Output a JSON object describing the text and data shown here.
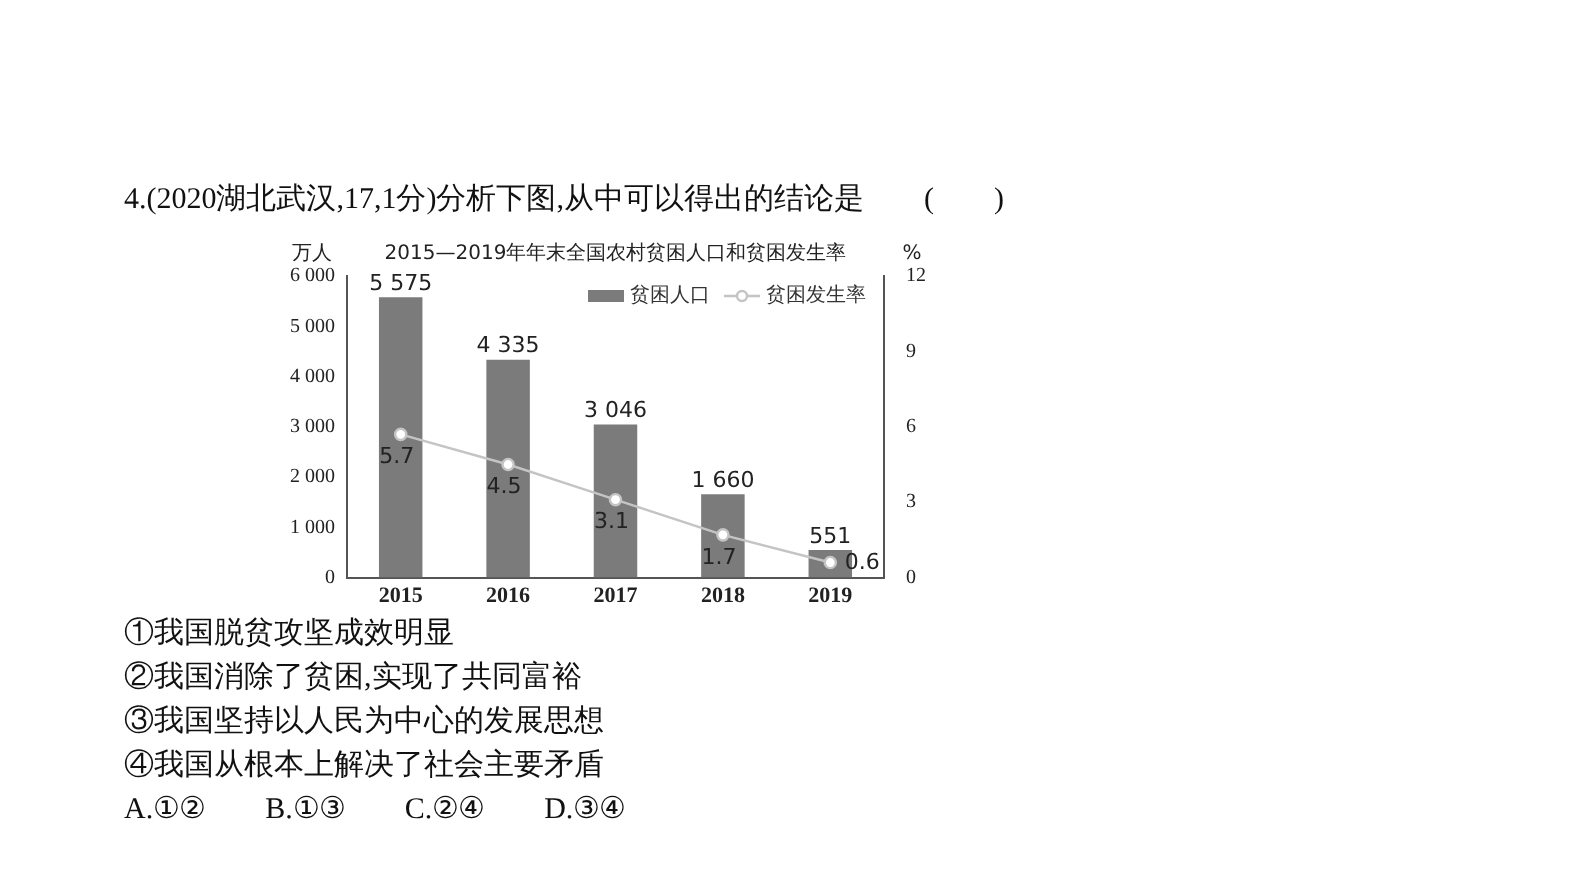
{
  "chart_data": {
    "type": "bar",
    "title": "2015—2019年年末全国农村贫困人口和贫困发生率",
    "ylabel": "万人",
    "y2label": "%",
    "categories": [
      "2015",
      "2016",
      "2017",
      "2018",
      "2019"
    ],
    "series": [
      {
        "name": "贫困人口",
        "color": "#7b7b7b",
        "values": [
          5575,
          4335,
          3046,
          1660,
          551
        ],
        "value_labels": [
          "5 575",
          "4 335",
          "3 046",
          "1 660",
          "551"
        ]
      },
      {
        "name": "贫困发生率",
        "type": "line",
        "axis": "y2",
        "color": "#c4c4c4",
        "marker": "circle",
        "values": [
          5.7,
          4.5,
          3.1,
          1.7,
          0.6
        ]
      }
    ],
    "ylim": [
      0,
      6000
    ],
    "yticks": [
      0,
      {
        "value": 1000,
        "label": "1 000"
      },
      {
        "value": 2000,
        "label": "2 000"
      },
      {
        "value": 3000,
        "label": "3 000"
      },
      {
        "value": 4000,
        "label": "4 000"
      },
      {
        "value": 5000,
        "label": "5 000"
      },
      {
        "value": 6000,
        "label": "6 000"
      }
    ],
    "y2lim": [
      0,
      12
    ],
    "y2ticks": [
      0,
      3,
      6,
      9,
      12
    ],
    "grid": false,
    "legend": "top right",
    "data_labels": true,
    "annotations": [
      "4.(2020湖北武汉,17,1分)分析下图,从中可以得出的结论是　　(　　)",
      "①我国脱贫攻坚成效明显",
      "②我国消除了贫困,实现了共同富裕",
      "③我国坚持以人民为中心的发展思想",
      "④我国从根本上解决了社会主要矛盾",
      "A.①②　　B.①③　　C.②④　　D.③④"
    ]
  }
}
